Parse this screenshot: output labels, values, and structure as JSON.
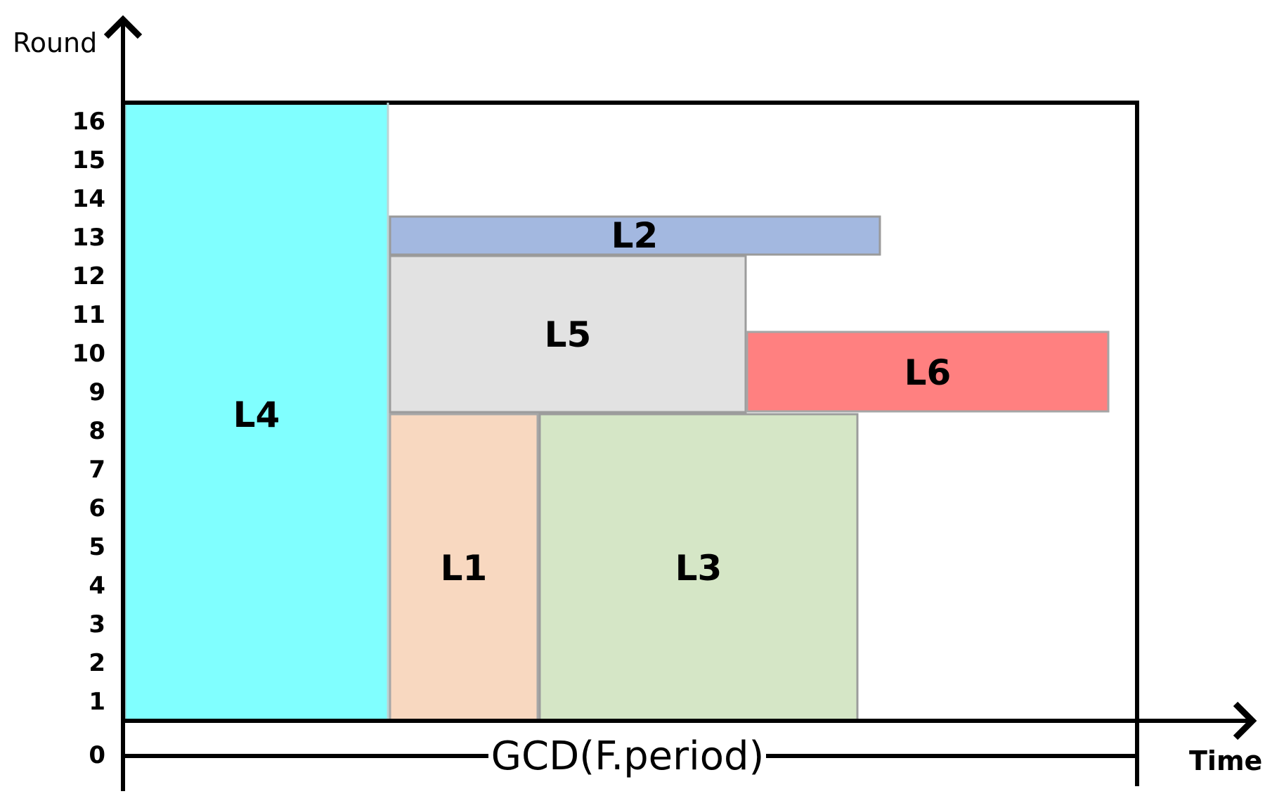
{
  "axes": {
    "y_title": "Round",
    "x_title": "Time",
    "origin_label": "0",
    "y_ticks": [
      "16",
      "15",
      "14",
      "13",
      "12",
      "11",
      "10",
      "9",
      "8",
      "7",
      "6",
      "5",
      "4",
      "3",
      "2",
      "1"
    ]
  },
  "period_label": "GCD(F.period)",
  "blocks": [
    {
      "id": "L4",
      "label": "L4",
      "color": "#80ffff",
      "round_from": 1,
      "round_to": 16
    },
    {
      "id": "L1",
      "label": "L1",
      "color": "#f8d8c0",
      "round_from": 1,
      "round_to": 8
    },
    {
      "id": "L3",
      "label": "L3",
      "color": "#d5e6c6",
      "round_from": 1,
      "round_to": 8
    },
    {
      "id": "L5",
      "label": "L5",
      "color": "#e2e2e2",
      "round_from": 9,
      "round_to": 12
    },
    {
      "id": "L6",
      "label": "L6",
      "color": "#ff8080",
      "round_from": 9,
      "round_to": 10
    },
    {
      "id": "L2",
      "label": "L2",
      "color": "#a3b8e0",
      "round_from": 13,
      "round_to": 13
    }
  ]
}
